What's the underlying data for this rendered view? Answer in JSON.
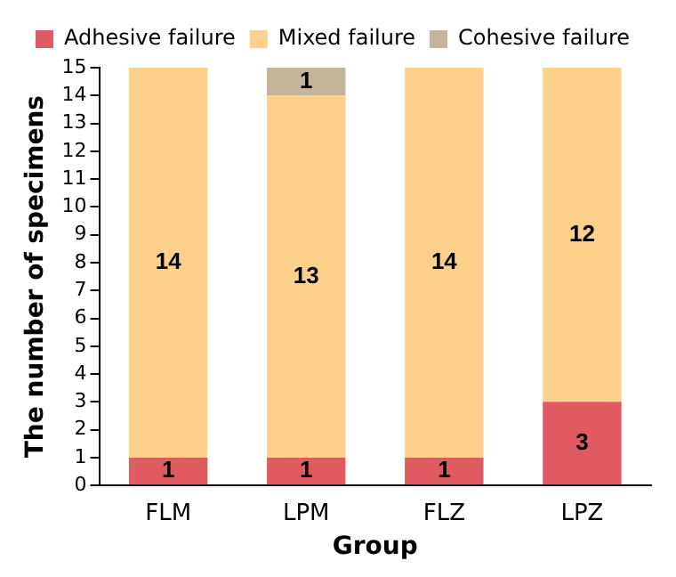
{
  "chart_data": {
    "type": "bar",
    "stacked": true,
    "xlabel": "Group",
    "ylabel": "The number of specimens",
    "categories": [
      "FLM",
      "LPM",
      "FLZ",
      "LPZ"
    ],
    "series": [
      {
        "name": "Adhesive failure",
        "color": "#e05a62",
        "values": [
          1,
          1,
          1,
          3
        ],
        "value_labels": [
          "1",
          "1",
          "1",
          "3"
        ]
      },
      {
        "name": "Mixed failure",
        "color": "#fdd08c",
        "values": [
          14,
          13,
          14,
          12
        ],
        "value_labels": [
          "14",
          "13",
          "14",
          "12"
        ]
      },
      {
        "name": "Cohesive failure",
        "color": "#c4b49a",
        "values": [
          0,
          1,
          0,
          0
        ],
        "value_labels": [
          null,
          "1",
          null,
          null
        ]
      }
    ],
    "ylim": [
      0,
      15
    ],
    "yticks": [
      0,
      1,
      2,
      3,
      4,
      5,
      6,
      7,
      8,
      9,
      10,
      11,
      12,
      13,
      14,
      15
    ],
    "grid": false,
    "legend": "top"
  }
}
